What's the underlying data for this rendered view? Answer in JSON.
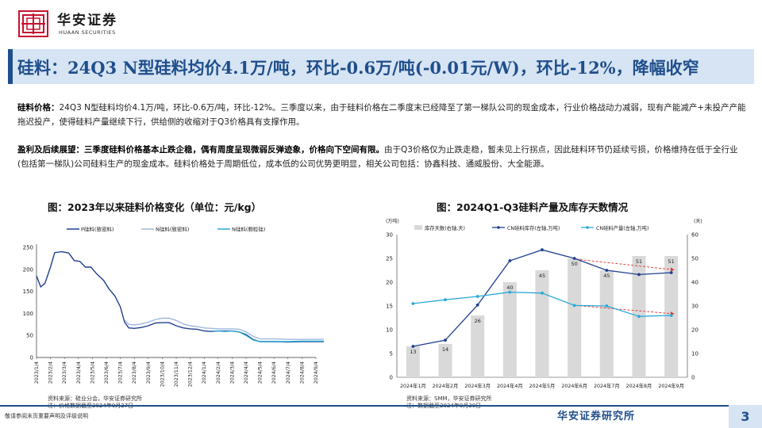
{
  "header": {
    "logo_cn": "华安证券",
    "logo_en": "HUAAN SECURITIES"
  },
  "title": "硅料：24Q3 N型硅料均价4.1万/吨，环比-0.6万/吨(-0.01元/W)，环比-12%，降幅收窄",
  "paragraphs": [
    {
      "lead": "硅料价格：",
      "text": "24Q3 N型硅料均价4.1万/吨，环比-0.6万/吨，环比-12%。三季度以来，由于硅料价格在二季度末已经降至了第一梯队公司的现金成本，行业价格战动力减弱，现有产能减产+未投产产能拖迟投产，使得硅料产量继续下行，供给侧的收缩对于Q3价格具有支撑作用。"
    },
    {
      "lead": "盈利及后续展望：三季度硅料价格基本止跌企稳，偶有周度呈现微弱反弹迹象，价格向下空间有限。",
      "text": "由于Q3价格仅为止跌走稳，暂未见上行拐点，因此硅料环节仍延续亏损，价格维持在低于全行业(包括第一梯队)公司硅料生产的现金成本。硅料价格处于周期低位，成本低的公司优势更明显，相关公司包括：协鑫科技、通威股份、大全能源。"
    }
  ],
  "figure_left": {
    "title": "图：2023年以来硅料价格变化（单位：元/kg）",
    "source_line1": "资料来源：硅业分会，华安证券研究所",
    "source_line2": "注：价格数据截至2024年9月27日"
  },
  "figure_right": {
    "title": "图：2024Q1-Q3硅料产量及库存天数情况",
    "source_line1": "资料来源：SMM，华安证券研究所",
    "source_line2": "注：数据截至2024年9月30日"
  },
  "footer": {
    "note": "敬请参阅末页重要声明及评级说明",
    "brand": "华安证券研究所",
    "page": "3"
  },
  "chart_data": [
    {
      "type": "line",
      "title": "2023年以来硅料价格变化（单位：元/kg）",
      "ylim": [
        0,
        250
      ],
      "yticks": [
        0,
        50,
        100,
        150,
        200,
        250
      ],
      "grid": false,
      "legend_position": "top",
      "x": [
        "2023/1/4",
        "2023/2/4",
        "2023/3/4",
        "2023/4/4",
        "2023/5/4",
        "2023/6/4",
        "2023/7/4",
        "2023/8/4",
        "2023/9/4",
        "2023/10/4",
        "2023/11/4",
        "2023/12/4",
        "2024/1/4",
        "2024/2/4",
        "2024/3/4",
        "2024/4/4",
        "2024/5/4",
        "2024/6/4",
        "2024/7/4",
        "2024/8/4",
        "2024/9/4"
      ],
      "series": [
        {
          "name": "P硅料(致密料)",
          "color": "#1f3f8f",
          "points": [
            [
              0,
              185
            ],
            [
              0.3,
              160
            ],
            [
              0.6,
              168
            ],
            [
              1.0,
              205
            ],
            [
              1.3,
              238
            ],
            [
              1.8,
              240
            ],
            [
              2.3,
              237
            ],
            [
              2.7,
              220
            ],
            [
              3.1,
              218
            ],
            [
              3.5,
              205
            ],
            [
              3.9,
              205
            ],
            [
              4.3,
              190
            ],
            [
              4.8,
              175
            ],
            [
              5.2,
              155
            ],
            [
              5.6,
              140
            ],
            [
              6.0,
              115
            ],
            [
              6.3,
              80
            ],
            [
              6.6,
              67
            ],
            [
              7.0,
              66
            ],
            [
              7.5,
              68
            ],
            [
              8.0,
              72
            ],
            [
              8.5,
              78
            ],
            [
              9.0,
              79
            ],
            [
              9.5,
              79
            ],
            [
              10.0,
              72
            ],
            [
              10.5,
              67
            ],
            [
              11.0,
              65
            ],
            [
              11.5,
              64
            ],
            [
              12.0,
              60
            ],
            [
              12.5,
              59
            ],
            [
              13.0,
              60
            ],
            [
              13.5,
              60
            ],
            [
              14.0,
              60
            ],
            [
              14.5,
              58
            ],
            [
              15.0,
              52
            ],
            [
              15.5,
              41
            ],
            [
              16.0,
              36
            ],
            [
              17.0,
              36
            ],
            [
              18.0,
              35
            ],
            [
              19.0,
              36
            ],
            [
              20.0,
              36
            ],
            [
              21.0,
              36
            ]
          ]
        },
        {
          "name": "N硅料(致密料)",
          "color": "#9fb7e0",
          "points": [
            [
              6.3,
              85
            ],
            [
              6.6,
              75
            ],
            [
              7.0,
              74
            ],
            [
              7.5,
              76
            ],
            [
              8.0,
              80
            ],
            [
              8.5,
              86
            ],
            [
              9.0,
              89
            ],
            [
              9.5,
              89
            ],
            [
              10.0,
              84
            ],
            [
              10.5,
              76
            ],
            [
              11.0,
              72
            ],
            [
              11.5,
              70
            ],
            [
              12.0,
              67
            ],
            [
              12.5,
              66
            ],
            [
              13.0,
              65
            ],
            [
              13.5,
              65
            ],
            [
              14.0,
              65
            ],
            [
              14.5,
              64
            ],
            [
              15.0,
              58
            ],
            [
              15.5,
              48
            ],
            [
              16.0,
              42
            ],
            [
              17.0,
              42
            ],
            [
              18.0,
              41
            ],
            [
              19.0,
              41
            ],
            [
              20.0,
              41
            ],
            [
              21.0,
              42
            ]
          ]
        },
        {
          "name": "N硅料(颗粒硅)",
          "color": "#2ba9d6",
          "points": [
            [
              12.5,
              60
            ],
            [
              13.0,
              60
            ],
            [
              13.5,
              59
            ],
            [
              14.0,
              60
            ],
            [
              14.5,
              58
            ],
            [
              15.0,
              50
            ],
            [
              15.5,
              40
            ],
            [
              16.0,
              36
            ],
            [
              17.0,
              36
            ],
            [
              18.0,
              36
            ],
            [
              19.0,
              37
            ],
            [
              20.0,
              37
            ],
            [
              21.0,
              37
            ]
          ]
        }
      ]
    },
    {
      "type": "bar+line",
      "title": "2024Q1-Q3硅料产量及库存天数情况",
      "categories": [
        "2024年1月",
        "2024年2月",
        "2024年3月",
        "2024年4月",
        "2024年5月",
        "2024年6月",
        "2024年7月",
        "2024年8月",
        "2024年9月"
      ],
      "ylabel_left": "(万吨)",
      "ylabel_right": "(天)",
      "ylim_left": [
        0,
        30
      ],
      "yticks_left": [
        0,
        5,
        10,
        15,
        20,
        25,
        30
      ],
      "ylim_right": [
        0,
        60
      ],
      "yticks_right": [
        0,
        10,
        20,
        30,
        40,
        50,
        60
      ],
      "legend_position": "top",
      "bars": {
        "name": "库存天数(右轴,天)",
        "color": "#d9d9d9",
        "values": [
          13,
          14,
          26,
          40,
          45,
          50,
          45,
          51,
          51
        ]
      },
      "lines": [
        {
          "name": "CN硅料库存(左轴,万吨)",
          "color": "#1f3f8f",
          "values": [
            6.5,
            7.8,
            15.2,
            24.5,
            26.8,
            25.0,
            22.5,
            21.6,
            22.0
          ]
        },
        {
          "name": "CN硅料产量(左轴,万吨)",
          "color": "#2ba9d6",
          "values": [
            15.5,
            16.3,
            17.0,
            17.9,
            17.7,
            15.1,
            15.0,
            12.8,
            13.0
          ]
        }
      ]
    }
  ]
}
